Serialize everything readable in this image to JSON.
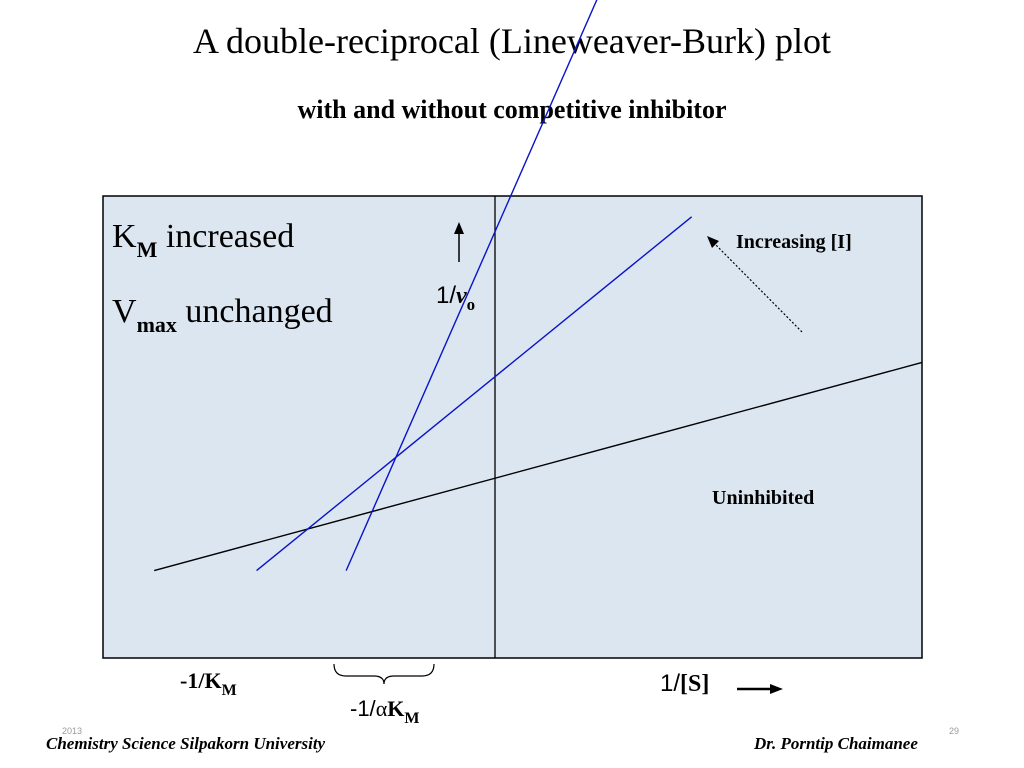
{
  "chart_data": {
    "type": "line",
    "title": "A double-reciprocal (Lineweaver-Burk) plot",
    "subtitle": "with and without competitive inhibitor",
    "series": [
      {
        "name": "Uninhibited",
        "color": "#000000",
        "points": [
          [
            -1.0,
            0.0
          ],
          [
            2.0,
            1.0
          ]
        ]
      },
      {
        "name": "",
        "color": "#0a14c8",
        "points": [
          [
            -0.6,
            0.0
          ],
          [
            1.1,
            1.7
          ]
        ]
      },
      {
        "name": "",
        "color": "#0a14c8",
        "points": [
          [
            -0.25,
            0.0
          ],
          [
            0.75,
            2.8
          ]
        ]
      }
    ],
    "annotations": {
      "km_label": "K",
      "km_sub": "M",
      "km_rest": " increased",
      "vmax_label": "V",
      "vmax_sub": "max",
      "vmax_rest": " unchanged",
      "increasing": "Increasing [I]",
      "uninhibited": "Uninhibited",
      "neg_km_main": "-1/K",
      "neg_km_sub": "M",
      "neg_akm_main": "-1/",
      "neg_akm_alpha": "α",
      "neg_akm_k": "K",
      "neg_akm_sub": "M",
      "y_axis_label_main": "1/",
      "y_axis_label_v": "v",
      "y_axis_label_sub": "o",
      "x_axis_label_main": "1/",
      "x_axis_label_s": "[S]"
    },
    "axis_ranges": {
      "x": [
        -1.2,
        2.0
      ],
      "y": [
        -0.42,
        1.8
      ]
    },
    "grid": false,
    "legend": "none"
  },
  "footer": {
    "left": "Chemistry   Science   Silpakorn University",
    "right": "Dr. Porntip  Chaimanee",
    "year": "2013",
    "page": "29"
  },
  "colors": {
    "plot_bg": "#dce6f1",
    "inhibited": "#0a14c8",
    "uninhibited": "#000000"
  }
}
